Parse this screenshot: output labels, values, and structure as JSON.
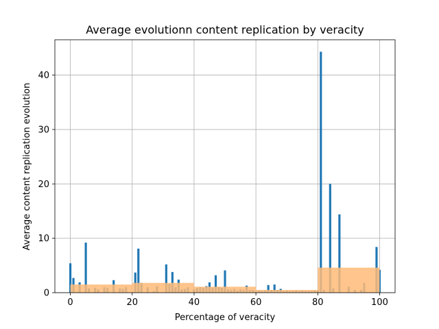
{
  "chart_data": {
    "type": "bar",
    "title": "Average evolutionn content replication by veracity",
    "xlabel": "Percentage of veracity",
    "ylabel": "Average content replication evolution",
    "xlim": [
      -5,
      105
    ],
    "ylim": [
      0,
      46.5
    ],
    "xticks": [
      0,
      20,
      40,
      60,
      80,
      100
    ],
    "yticks": [
      0,
      10,
      20,
      30,
      40
    ],
    "grid": true,
    "colors": {
      "series1": "#1f77b4",
      "series2": "#ffbb78"
    },
    "series": [
      {
        "kind": "narrow-bars",
        "x": [
          0,
          1,
          3,
          5,
          6,
          8,
          9,
          11,
          12,
          14,
          16,
          17,
          18,
          21,
          22,
          23,
          25,
          27,
          28,
          31,
          32,
          33,
          34,
          35,
          36,
          37,
          38,
          40,
          41,
          42,
          43,
          44,
          45,
          46,
          47,
          48,
          49,
          50,
          51,
          52,
          53,
          54,
          55,
          56,
          57,
          58,
          59,
          60,
          61,
          62,
          63,
          64,
          65,
          66,
          67,
          68,
          69,
          70,
          71,
          72,
          73,
          74,
          75,
          76,
          77,
          78,
          79,
          80,
          81,
          82,
          84,
          85,
          87,
          90,
          92,
          94,
          95,
          99,
          100
        ],
        "values": [
          5.4,
          2.7,
          1.9,
          9.2,
          0.8,
          0.9,
          0.6,
          1.0,
          0.9,
          2.3,
          0.8,
          0.7,
          1.0,
          3.7,
          8.1,
          1.8,
          1.0,
          0.3,
          1.2,
          5.2,
          1.6,
          3.8,
          1.0,
          2.4,
          0.6,
          0.7,
          1.0,
          0.6,
          0.9,
          1.0,
          0.9,
          1.2,
          1.9,
          0.9,
          3.2,
          1.0,
          0.9,
          4.1,
          0.6,
          0.5,
          0.7,
          0.4,
          0.6,
          0.5,
          1.3,
          0.5,
          0.5,
          0.3,
          0.4,
          0.3,
          0.4,
          1.4,
          0.5,
          1.5,
          0.5,
          0.7,
          0.3,
          0.4,
          0.3,
          0.3,
          0.4,
          0.3,
          0.4,
          0.3,
          0.3,
          0.3,
          0.4,
          0.4,
          44.3,
          0.5,
          20.0,
          0.8,
          14.4,
          1.1,
          0.5,
          0.5,
          1.8,
          8.4,
          4.2
        ]
      },
      {
        "kind": "binned-bars",
        "bins": [
          [
            0,
            20
          ],
          [
            20,
            40
          ],
          [
            40,
            60
          ],
          [
            60,
            80
          ],
          [
            80,
            100
          ]
        ],
        "values": [
          1.5,
          1.8,
          1.1,
          0.5,
          4.6
        ]
      }
    ]
  }
}
